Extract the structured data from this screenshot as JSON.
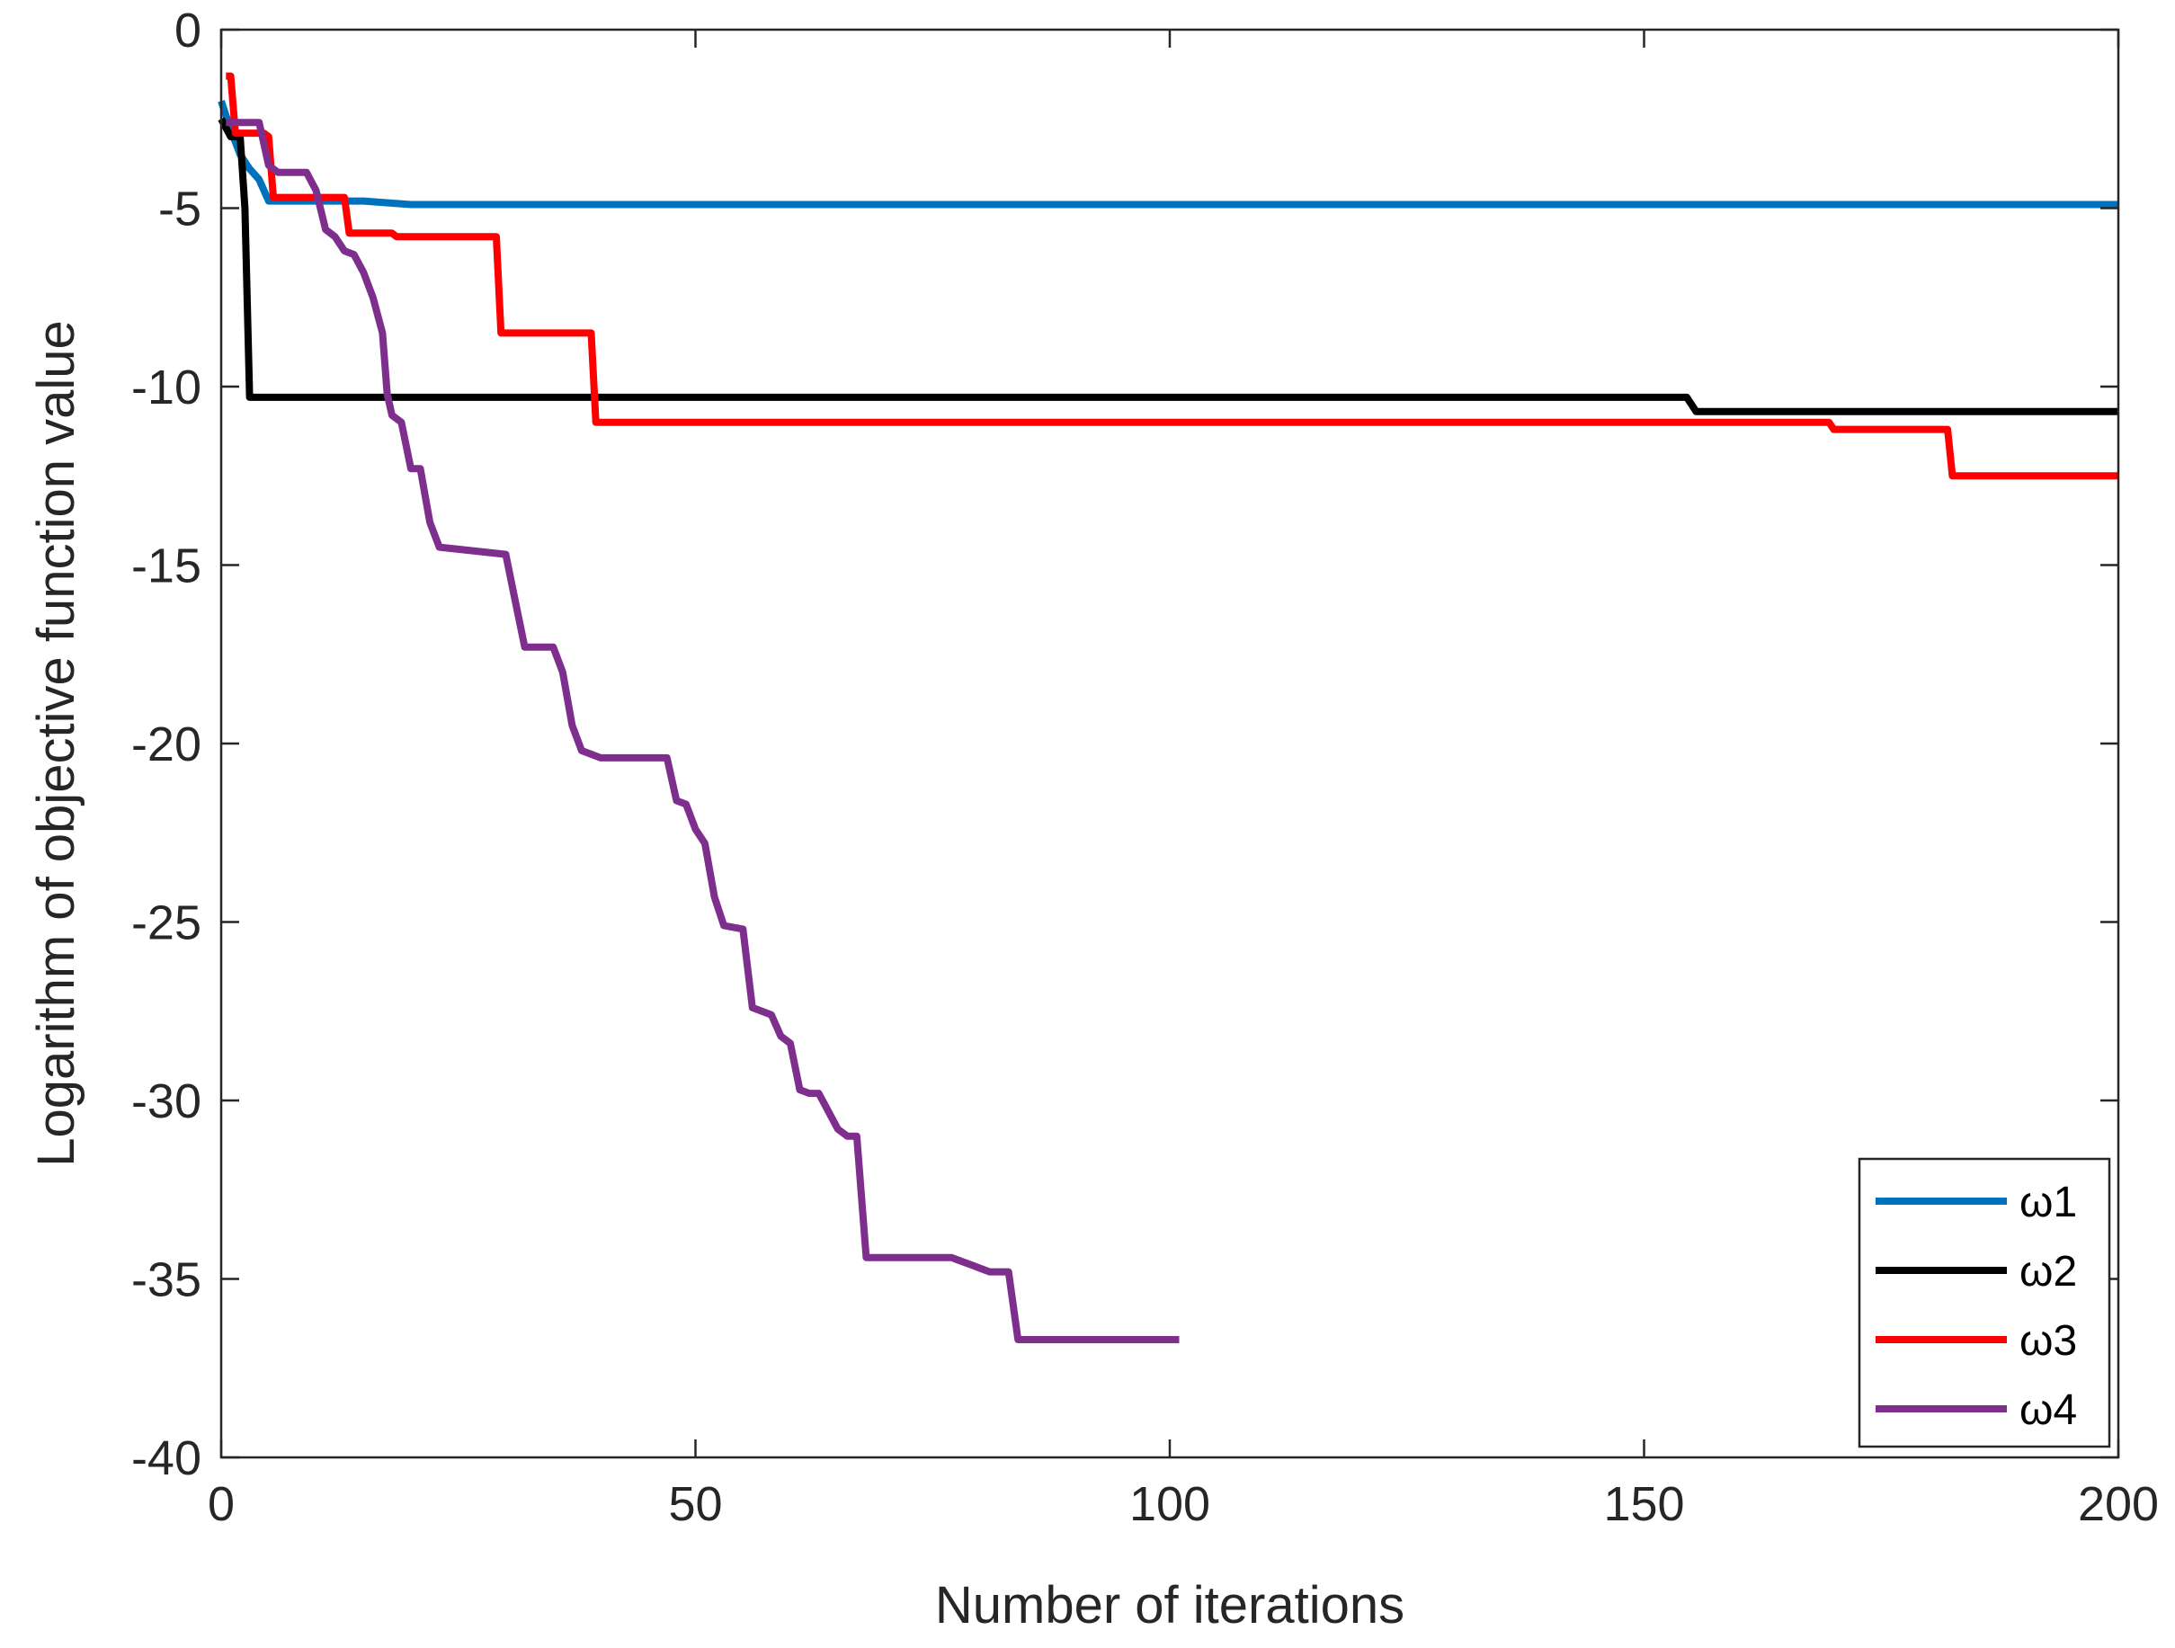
{
  "chart_data": {
    "type": "line",
    "title": "",
    "xlabel": "Number of iterations",
    "ylabel": "Logarithm of objective function value",
    "xlim": [
      0,
      200
    ],
    "ylim": [
      -40,
      0
    ],
    "xticks": [
      0,
      50,
      100,
      150,
      200
    ],
    "yticks": [
      0,
      -5,
      -10,
      -15,
      -20,
      -25,
      -30,
      -35,
      -40
    ],
    "xtick_labels": [
      "0",
      "50",
      "100",
      "150",
      "200"
    ],
    "ytick_labels": [
      "0",
      "-5",
      "-10",
      "-15",
      "-20",
      "-25",
      "-30",
      "-35",
      "-40"
    ],
    "grid": false,
    "legend_position": "bottom-right",
    "series": [
      {
        "name": "ω1",
        "color": "#0072BD",
        "x": [
          0,
          1,
          2,
          3,
          4,
          5,
          6,
          10,
          15,
          20,
          50,
          100,
          150,
          200
        ],
        "y": [
          -2.0,
          -2.8,
          -3.5,
          -3.9,
          -4.2,
          -4.8,
          -4.8,
          -4.8,
          -4.8,
          -4.9,
          -4.9,
          -4.9,
          -4.9,
          -4.9
        ]
      },
      {
        "name": "ω2",
        "color": "#000000",
        "x": [
          0,
          1,
          2,
          2.5,
          3,
          4,
          50,
          100,
          150,
          154.5,
          155.5,
          200
        ],
        "y": [
          -2.5,
          -3.0,
          -3.0,
          -5.0,
          -10.3,
          -10.3,
          -10.3,
          -10.3,
          -10.3,
          -10.3,
          -10.7,
          -10.7
        ]
      },
      {
        "name": "ω3",
        "color": "#FF0000",
        "x": [
          0.5,
          1,
          1.5,
          2,
          4.5,
          5,
          5.5,
          6,
          13,
          13.5,
          14,
          18,
          18.5,
          29,
          29.5,
          30,
          39,
          39.5,
          40,
          100,
          150,
          169.5,
          170,
          182,
          182.5,
          183,
          200
        ],
        "y": [
          -1.3,
          -1.3,
          -2.9,
          -2.9,
          -2.9,
          -3.0,
          -4.7,
          -4.7,
          -4.7,
          -5.7,
          -5.7,
          -5.7,
          -5.8,
          -5.8,
          -8.5,
          -8.5,
          -8.5,
          -11.0,
          -11.0,
          -11.0,
          -11.0,
          -11.0,
          -11.2,
          -11.2,
          -12.5,
          -12.5,
          -12.5
        ]
      },
      {
        "name": "ω4",
        "color": "#7E2F8E",
        "x": [
          0.5,
          2,
          4,
          5,
          6,
          9,
          10,
          11,
          12,
          13,
          14,
          15,
          16,
          17,
          17.5,
          18,
          19,
          20,
          21,
          22,
          23,
          30,
          31,
          32,
          33,
          35,
          36,
          37,
          38,
          40,
          47,
          48,
          49,
          50,
          51,
          52,
          53,
          55,
          56,
          57,
          58,
          59,
          60,
          61,
          62,
          63,
          65,
          66,
          67,
          68,
          69,
          70,
          77,
          78,
          79,
          80,
          81,
          83,
          84,
          85,
          86,
          101
        ],
        "y": [
          -2.6,
          -2.6,
          -2.6,
          -3.8,
          -4.0,
          -4.0,
          -4.5,
          -5.6,
          -5.8,
          -6.2,
          -6.3,
          -6.8,
          -7.5,
          -8.5,
          -10.2,
          -10.8,
          -11.0,
          -12.3,
          -12.3,
          -13.8,
          -14.5,
          -14.7,
          -16.0,
          -17.3,
          -17.3,
          -17.3,
          -18.0,
          -19.5,
          -20.2,
          -20.4,
          -20.4,
          -21.6,
          -21.7,
          -22.4,
          -22.8,
          -24.3,
          -25.1,
          -25.2,
          -27.4,
          -27.5,
          -27.6,
          -28.2,
          -28.4,
          -29.7,
          -29.8,
          -29.8,
          -30.8,
          -31.0,
          -31.0,
          -34.4,
          -34.4,
          -34.4,
          -34.4,
          -34.5,
          -34.6,
          -34.7,
          -34.8,
          -34.8,
          -36.7,
          -36.7,
          -36.7,
          -36.7
        ]
      }
    ]
  }
}
